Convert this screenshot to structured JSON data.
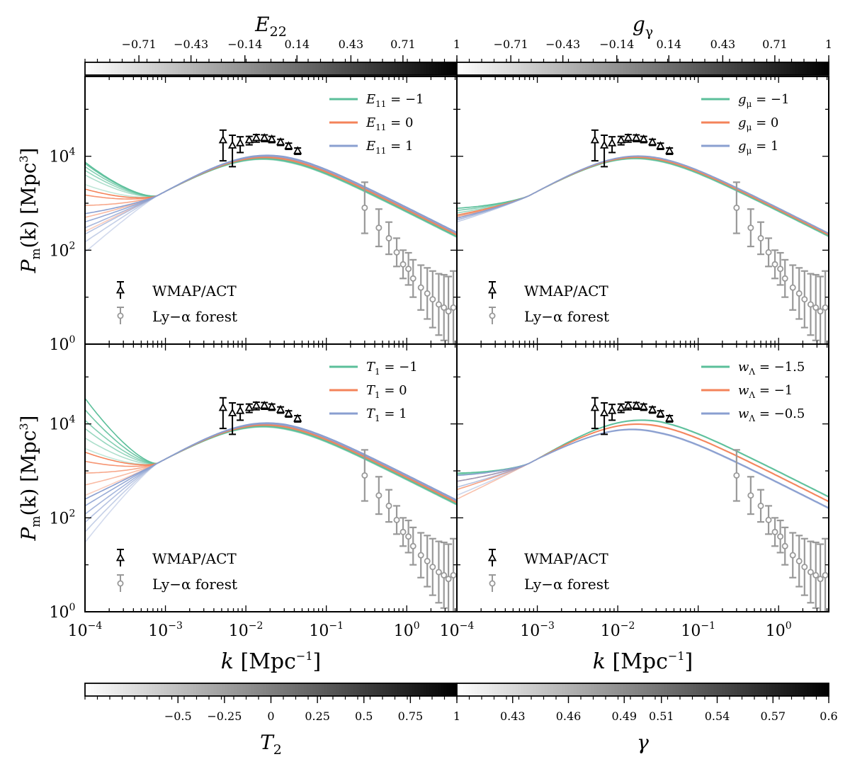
{
  "colorbars": [
    {
      "id": "cb-top-left",
      "label": "E",
      "label_sub": "22",
      "ticks": [
        "−0.71",
        "−0.43",
        "−0.14",
        "0.14",
        "0.43",
        "0.71",
        "1"
      ],
      "tick_values": [
        -0.71,
        -0.43,
        -0.14,
        0.14,
        0.43,
        0.71,
        1
      ],
      "range": [
        -1,
        1
      ],
      "position": "top"
    },
    {
      "id": "cb-top-right",
      "label": "g",
      "label_sub": "γ",
      "ticks": [
        "−0.71",
        "−0.43",
        "−0.14",
        "0.14",
        "0.43",
        "0.71",
        "1"
      ],
      "tick_values": [
        -0.71,
        -0.43,
        -0.14,
        0.14,
        0.43,
        0.71,
        1
      ],
      "range": [
        -1,
        1
      ],
      "position": "top"
    },
    {
      "id": "cb-bottom-left",
      "label": "T",
      "label_sub": "2",
      "ticks": [
        "−0.5",
        "−0.25",
        "0",
        "0.25",
        "0.5",
        "0.75",
        "1"
      ],
      "tick_values": [
        -0.5,
        -0.25,
        0,
        0.25,
        0.5,
        0.75,
        1
      ],
      "range": [
        -1,
        1
      ],
      "position": "bottom"
    },
    {
      "id": "cb-bottom-right",
      "label": "γ",
      "label_sub": "",
      "ticks": [
        "0.43",
        "0.46",
        "0.49",
        "0.51",
        "0.54",
        "0.57",
        "0.6"
      ],
      "tick_values": [
        0.43,
        0.46,
        0.49,
        0.51,
        0.54,
        0.57,
        0.6
      ],
      "range": [
        0.4,
        0.6
      ],
      "position": "bottom"
    }
  ],
  "axes": {
    "xlabel": "k [Mpc⁻¹]",
    "ylabel": "Pm(k) [Mpc³]",
    "xlabel_main": "k",
    "xlabel_unit": "[Mpc",
    "xlabel_unit_sup": "−1",
    "xlabel_close": "]",
    "ylabel_main": "P",
    "ylabel_sub": "m",
    "ylabel_unit": "(k) [Mpc",
    "ylabel_unit_sup": "3",
    "ylabel_close": "]",
    "xticks": [
      {
        "label": "10",
        "exp": "−4",
        "value": 0.0001
      },
      {
        "label": "10",
        "exp": "−3",
        "value": 0.001
      },
      {
        "label": "10",
        "exp": "−2",
        "value": 0.01
      },
      {
        "label": "10",
        "exp": "−1",
        "value": 0.1
      },
      {
        "label": "10",
        "exp": "0",
        "value": 1
      }
    ],
    "yticks": [
      {
        "label": "10",
        "exp": "0",
        "value": 1
      },
      {
        "label": "10",
        "exp": "2",
        "value": 100
      },
      {
        "label": "10",
        "exp": "4",
        "value": 10000
      }
    ]
  },
  "legend_data": {
    "wmap": "WMAP/ACT",
    "lya": "Ly−α forest"
  },
  "colors": {
    "teal": "#5bbf9a",
    "orange": "#f4835a",
    "blue": "#8a9fd0",
    "wmap": "#000000",
    "lya": "#999999"
  },
  "chart_data": {
    "type": "line",
    "x_scale": "log",
    "y_scale": "log",
    "xlim": [
      0.0001,
      4.2
    ],
    "ylim": [
      1,
      500000
    ],
    "observations": {
      "wmap_act": {
        "name": "WMAP/ACT",
        "k": [
          0.0052,
          0.0068,
          0.0085,
          0.011,
          0.0135,
          0.017,
          0.021,
          0.027,
          0.034,
          0.044
        ],
        "P": [
          22000,
          17000,
          19000,
          22000,
          24500,
          24500,
          23000,
          20000,
          16500,
          13000
        ],
        "err_lo": [
          14000,
          11000,
          7000,
          4500,
          4500,
          4000,
          3500,
          3000,
          2500,
          2000
        ],
        "err_hi": [
          14000,
          11000,
          7000,
          4500,
          4500,
          4000,
          3500,
          3000,
          2500,
          2000
        ]
      },
      "lya_forest": {
        "name": "Ly−α forest",
        "k": [
          0.3,
          0.45,
          0.6,
          0.75,
          0.9,
          1.05,
          1.2,
          1.5,
          1.8,
          2.1,
          2.5,
          2.9,
          3.3,
          3.8
        ],
        "P": [
          800,
          300,
          180,
          90,
          50,
          40,
          25,
          16,
          12,
          9,
          7,
          6,
          5,
          6
        ],
        "err_factor": [
          3.5,
          2.5,
          2.2,
          2.0,
          2.0,
          2.2,
          2.5,
          3.0,
          3.5,
          4.0,
          4.5,
          5.0,
          5.5,
          6.0
        ]
      }
    },
    "panels": [
      {
        "id": "top-left",
        "legend": [
          "E₁₁ = −1",
          "E₁₁ = 0",
          "E₁₁ = 1"
        ],
        "legend_main": [
          "E",
          "E",
          "E"
        ],
        "legend_sub": [
          "11",
          "11",
          "11"
        ],
        "legend_val": [
          " = −1",
          " = 0",
          " = 1"
        ],
        "series_colors": [
          "#5bbf9a",
          "#f4835a",
          "#8a9fd0"
        ],
        "lowk_P_at_1e-4": [
          [
            2500,
            4000,
            5000,
            6000,
            7000,
            7500
          ],
          [
            250,
            500,
            900,
            1500,
            2000
          ],
          [
            90,
            150,
            220,
            300,
            400,
            600
          ]
        ],
        "amp_offset": [
          -0.04,
          0.0,
          0.04
        ],
        "shape": "E"
      },
      {
        "id": "top-right",
        "legend": [
          "gμ = −1",
          "gμ = 0",
          "gμ = 1"
        ],
        "legend_main": [
          "g",
          "g",
          "g"
        ],
        "legend_sub": [
          "μ",
          "μ",
          "μ"
        ],
        "legend_val": [
          " = −1",
          " = 0",
          " = 1"
        ],
        "series_colors": [
          "#5bbf9a",
          "#f4835a",
          "#8a9fd0"
        ],
        "lowk_P_at_1e-4": [
          [
            550,
            620,
            700,
            780
          ],
          [
            480,
            520,
            560
          ],
          [
            400,
            440,
            480
          ]
        ],
        "amp_offset": [
          -0.03,
          0.0,
          0.03
        ],
        "shape": "g"
      },
      {
        "id": "bottom-left",
        "legend": [
          "T₁ = −1",
          "T₁ = 0",
          "T₁ = 1"
        ],
        "legend_main": [
          "T",
          "T",
          "T"
        ],
        "legend_sub": [
          "1",
          "1",
          "1"
        ],
        "legend_val": [
          " = −1",
          " = 0",
          " = 1"
        ],
        "series_colors": [
          "#5bbf9a",
          "#f4835a",
          "#8a9fd0"
        ],
        "lowk_P_at_1e-4": [
          [
            3000,
            5000,
            8000,
            12000,
            20000,
            35000
          ],
          [
            300,
            500,
            900,
            1600,
            2500
          ],
          [
            30,
            50,
            80,
            120,
            180,
            250
          ]
        ],
        "amp_offset": [
          -0.04,
          0.0,
          0.04
        ],
        "shape": "T"
      },
      {
        "id": "bottom-right",
        "legend": [
          "wΛ = −1.5",
          "wΛ = −1",
          "wΛ = −0.5"
        ],
        "legend_main": [
          "w",
          "w",
          "w"
        ],
        "legend_sub": [
          "Λ",
          "Λ",
          "Λ"
        ],
        "legend_val": [
          " = −1.5",
          " = −1",
          " = −0.5"
        ],
        "series_colors": [
          "#5bbf9a",
          "#f4835a",
          "#8a9fd0"
        ],
        "lowk_P_at_1e-4": [
          [
            800,
            850,
            900
          ],
          [
            250,
            400,
            600
          ],
          [
            300,
            450,
            600,
            800
          ]
        ],
        "amp_offset": [
          0.12,
          0.02,
          -0.12
        ],
        "shape": "w"
      }
    ]
  }
}
